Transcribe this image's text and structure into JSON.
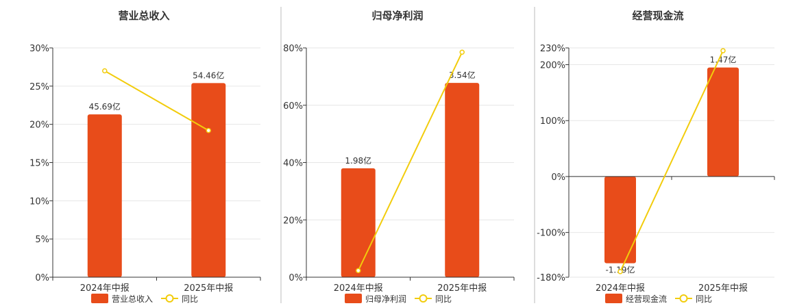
{
  "colors": {
    "bar": "#E84C1A",
    "line": "#F2CC0C",
    "grid": "#E6E6E6",
    "axis": "#333333",
    "divider": "#BBBBBB"
  },
  "chart_data": [
    {
      "type": "bar",
      "title": "营业总收入",
      "categories": [
        "2024年中报",
        "2025年中报"
      ],
      "bar_series": {
        "name": "营业总收入",
        "values": [
          21.3,
          25.4
        ],
        "labels": [
          "45.69亿",
          "54.46亿"
        ]
      },
      "line_series": {
        "name": "同比",
        "values": [
          27.0,
          19.2
        ]
      },
      "yticks": [
        "0%",
        "5%",
        "10%",
        "15%",
        "20%",
        "25%",
        "30%"
      ],
      "ytick_values": [
        0,
        5,
        10,
        15,
        20,
        25,
        30
      ],
      "ylim": [
        0,
        30
      ],
      "legend": [
        "营业总收入",
        "同比"
      ],
      "legend_position": "bottom",
      "grid": true
    },
    {
      "type": "bar",
      "title": "归母净利润",
      "categories": [
        "2024年中报",
        "2025年中报"
      ],
      "bar_series": {
        "name": "归母净利润",
        "values": [
          38.0,
          67.8
        ],
        "labels": [
          "1.98亿",
          "3.54亿"
        ]
      },
      "line_series": {
        "name": "同比",
        "values": [
          2.3,
          78.5
        ]
      },
      "yticks": [
        "0%",
        "20%",
        "40%",
        "60%",
        "80%"
      ],
      "ytick_values": [
        0,
        20,
        40,
        60,
        80
      ],
      "ylim": [
        0,
        80
      ],
      "legend": [
        "归母净利润",
        "同比"
      ],
      "legend_position": "bottom",
      "grid": true
    },
    {
      "type": "bar",
      "title": "经营现金流",
      "categories": [
        "2024年中报",
        "2025年中报"
      ],
      "bar_series": {
        "name": "经营现金流",
        "values": [
          -155,
          195
        ],
        "labels": [
          "-1.19亿",
          "1.47亿"
        ]
      },
      "line_series": {
        "name": "同比",
        "values": [
          -170,
          225
        ]
      },
      "yticks": [
        "-180%",
        "-100%",
        "0%",
        "100%",
        "200%",
        "230%"
      ],
      "ytick_values": [
        -180,
        -100,
        0,
        100,
        200,
        230
      ],
      "ylim": [
        -180,
        230
      ],
      "legend": [
        "经营现金流",
        "同比"
      ],
      "legend_position": "bottom",
      "grid": true
    }
  ]
}
